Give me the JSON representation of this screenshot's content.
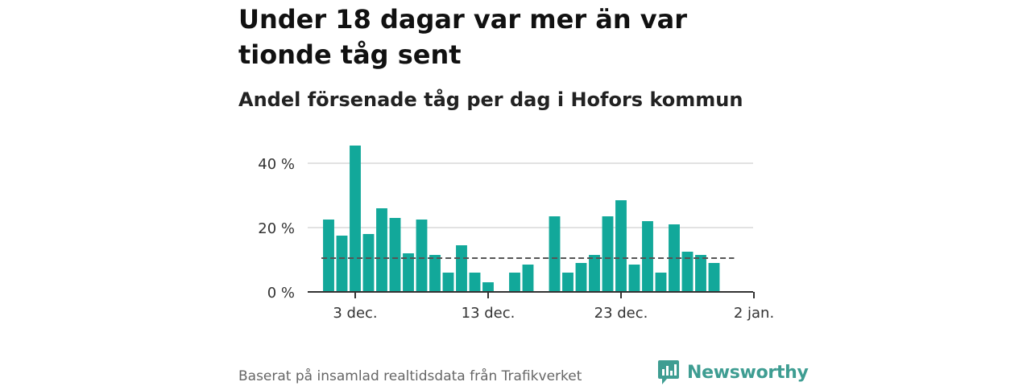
{
  "header": {
    "title": "Under 18 dagar var mer än var tionde tåg sent",
    "subtitle": "Andel försenade tåg per dag i Hofors kommun"
  },
  "footer": {
    "source": "Baserat på insamlad realtidsdata från Trafikverket",
    "brand": "Newsworthy"
  },
  "colors": {
    "bar": "#12a89a",
    "reference_line": "#555555",
    "grid": "#d9d9d9",
    "axis": "#333333",
    "brand": "#3e9d92"
  },
  "chart_data": {
    "type": "bar",
    "title": "Under 18 dagar var mer än var tionde tåg sent",
    "subtitle": "Andel försenade tåg per dag i Hofors kommun",
    "x_start": "2025-12-01",
    "x_end_date": "2026-01-02",
    "unit": "%",
    "values": [
      22.5,
      17.5,
      45.5,
      18,
      26,
      23,
      12,
      22.5,
      11.5,
      6,
      14.5,
      6,
      3,
      null,
      6,
      8.5,
      null,
      23.5,
      6,
      9,
      11.5,
      23.5,
      28.5,
      8.5,
      22,
      6,
      21,
      12.5,
      11.5,
      9
    ],
    "reference_line": 10.5,
    "ylim": [
      0,
      50
    ],
    "yticks": [
      {
        "value": 0,
        "label": "0 %"
      },
      {
        "value": 20,
        "label": "20 %"
      },
      {
        "value": 40,
        "label": "40 %"
      }
    ],
    "xticks": [
      {
        "date": "2025-12-03",
        "label": "3 dec."
      },
      {
        "date": "2025-12-13",
        "label": "13 dec."
      },
      {
        "date": "2025-12-23",
        "label": "23 dec."
      },
      {
        "date": "2026-01-02",
        "label": "2 jan."
      }
    ],
    "grid": true,
    "legend": "none"
  }
}
